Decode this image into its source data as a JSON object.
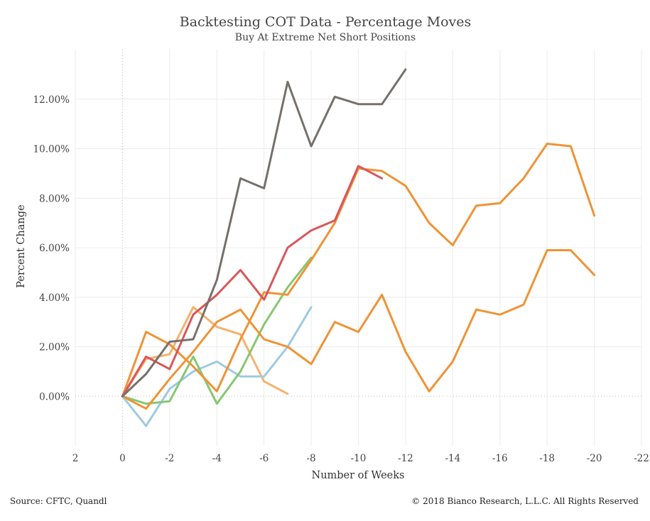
{
  "chart_data": {
    "type": "line",
    "title": "Backtesting COT Data - Percentage Moves",
    "subtitle": "Buy At Extreme Net Short Positions",
    "xlabel": "Number of Weeks",
    "ylabel": "Percent Change",
    "xlim": [
      2,
      -22
    ],
    "ylim": [
      -2,
      14
    ],
    "x_ticks": [
      2,
      0,
      -2,
      -4,
      -6,
      -8,
      -10,
      -12,
      -14,
      -16,
      -18,
      -20,
      -22
    ],
    "y_ticks": [
      0,
      2,
      4,
      6,
      8,
      10,
      12
    ],
    "x_tick_labels": [
      "2",
      "0",
      "-2",
      "-4",
      "-6",
      "-8",
      "-10",
      "-12",
      "-14",
      "-16",
      "-18",
      "-20",
      "-22"
    ],
    "y_tick_labels": [
      "0.00%",
      "2.00%",
      "4.00%",
      "6.00%",
      "8.00%",
      "10.00%",
      "12.00%"
    ],
    "grid": true,
    "series": [
      {
        "color": "#f6b26b",
        "x": [
          0,
          -1,
          -2,
          -3,
          -4,
          -5,
          -6,
          -7
        ],
        "y": [
          0,
          1.5,
          1.7,
          3.6,
          2.8,
          2.5,
          0.6,
          0.1
        ]
      },
      {
        "color": "#9ecae1",
        "x": [
          0,
          -1,
          -2,
          -3,
          -4,
          -5,
          -6,
          -7,
          -8
        ],
        "y": [
          0,
          -1.2,
          0.3,
          1.0,
          1.4,
          0.8,
          0.8,
          2.0,
          3.6
        ]
      },
      {
        "color": "#86c773",
        "x": [
          0,
          -1,
          -2,
          -3,
          -4,
          -5,
          -6,
          -7,
          -8
        ],
        "y": [
          0,
          -0.3,
          -0.2,
          1.6,
          -0.3,
          1.0,
          2.9,
          4.4,
          5.6
        ]
      },
      {
        "color": "#ef9336",
        "x": [
          0,
          -1,
          -2,
          -3,
          -4,
          -5,
          -6,
          -7,
          -8,
          -9,
          -10,
          -11,
          -12,
          -13,
          -14,
          -15,
          -16,
          -17,
          -18,
          -19,
          -20
        ],
        "y": [
          0,
          -0.5,
          0.7,
          1.8,
          3.0,
          3.5,
          2.3,
          2.0,
          1.3,
          3.0,
          2.6,
          4.1,
          1.8,
          0.2,
          1.4,
          3.5,
          3.3,
          3.7,
          5.9,
          5.9,
          4.9
        ]
      },
      {
        "color": "#ef9336",
        "x": [
          0,
          -1,
          -2,
          -3,
          -4,
          -5,
          -6,
          -7,
          -8,
          -9,
          -10,
          -11,
          -12,
          -13,
          -14,
          -15,
          -16,
          -17,
          -18,
          -19,
          -20
        ],
        "y": [
          0,
          2.6,
          2.1,
          1.2,
          0.2,
          2.3,
          4.2,
          4.1,
          5.5,
          7.0,
          9.2,
          9.1,
          8.5,
          7.0,
          6.1,
          7.7,
          7.8,
          8.8,
          10.2,
          10.1,
          7.3
        ]
      },
      {
        "color": "#d9575b",
        "x": [
          0,
          -1,
          -2,
          -3,
          -4,
          -5,
          -6,
          -7,
          -8,
          -9,
          -10,
          -11
        ],
        "y": [
          0,
          1.6,
          1.1,
          3.3,
          4.1,
          5.1,
          3.9,
          6.0,
          6.7,
          7.1,
          9.3,
          8.8
        ]
      },
      {
        "color": "#76706c",
        "x": [
          0,
          -1,
          -2,
          -3,
          -4,
          -5,
          -6,
          -7,
          -8,
          -9,
          -10,
          -11,
          -12
        ],
        "y": [
          0,
          0.9,
          2.2,
          2.3,
          4.7,
          8.8,
          8.4,
          12.7,
          10.1,
          12.1,
          11.8,
          11.8,
          13.2
        ]
      }
    ]
  },
  "footer": {
    "source": "Source: CFTC, Quandl",
    "copyright": "© 2018 Bianco Research, L.L.C. All Rights Reserved"
  }
}
